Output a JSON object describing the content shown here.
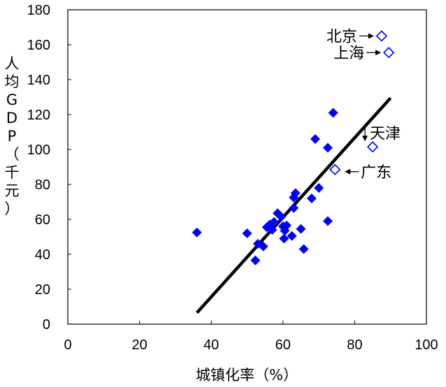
{
  "chart_data": {
    "type": "scatter",
    "title": "",
    "xlabel": "城镇化率（%）",
    "ylabel": "人均GDP（千元）",
    "xlim": [
      0,
      100
    ],
    "ylim": [
      0,
      180
    ],
    "x_ticks": [
      0,
      20,
      40,
      60,
      80,
      100
    ],
    "y_ticks": [
      0,
      20,
      40,
      60,
      80,
      100,
      120,
      140,
      160,
      180
    ],
    "x_tick_labels": [
      "0",
      "20",
      "40",
      "60",
      "80",
      "100"
    ],
    "y_tick_labels": [
      "0",
      "20",
      "40",
      "60",
      "80",
      "100",
      "120",
      "140",
      "160",
      "180"
    ],
    "grid": false,
    "colors": {
      "marker": "#0000ff",
      "trend": "#000000"
    },
    "series": [
      {
        "marker": "filled-diamond",
        "points": [
          {
            "x": 36.0,
            "y": 52.5
          },
          {
            "x": 50.0,
            "y": 52.0
          },
          {
            "x": 52.3,
            "y": 36.5
          },
          {
            "x": 53.0,
            "y": 46.0
          },
          {
            "x": 54.5,
            "y": 44.5
          },
          {
            "x": 55.5,
            "y": 55.5
          },
          {
            "x": 56.3,
            "y": 57.0
          },
          {
            "x": 57.0,
            "y": 54.0
          },
          {
            "x": 57.5,
            "y": 58.5
          },
          {
            "x": 58.5,
            "y": 63.5
          },
          {
            "x": 59.5,
            "y": 61.5
          },
          {
            "x": 60.0,
            "y": 56.0
          },
          {
            "x": 60.5,
            "y": 53.5
          },
          {
            "x": 60.3,
            "y": 49.0
          },
          {
            "x": 61.0,
            "y": 56.5
          },
          {
            "x": 62.5,
            "y": 50.5
          },
          {
            "x": 63.0,
            "y": 66.5
          },
          {
            "x": 63.0,
            "y": 72.5
          },
          {
            "x": 63.5,
            "y": 75.0
          },
          {
            "x": 65.0,
            "y": 54.5
          },
          {
            "x": 65.8,
            "y": 43.0
          },
          {
            "x": 68.0,
            "y": 72.0
          },
          {
            "x": 69.0,
            "y": 106.0
          },
          {
            "x": 70.0,
            "y": 78.0
          },
          {
            "x": 72.5,
            "y": 101.0
          },
          {
            "x": 72.5,
            "y": 59.0
          },
          {
            "x": 74.0,
            "y": 121.0
          }
        ]
      },
      {
        "marker": "open-diamond",
        "points": [
          {
            "x": 87.5,
            "y": 165.0
          },
          {
            "x": 89.5,
            "y": 155.5
          },
          {
            "x": 85.0,
            "y": 101.5
          },
          {
            "x": 74.5,
            "y": 88.5
          }
        ]
      }
    ],
    "trend_line": {
      "x1": 36.0,
      "y1": 6.5,
      "x2": 90.0,
      "y2": 129.5
    },
    "annotations": [
      {
        "text": "北京",
        "arrow": "→",
        "x": 87.5,
        "y": 165.0
      },
      {
        "text": "上海",
        "arrow": "→",
        "x": 89.5,
        "y": 155.5
      },
      {
        "text": "天津",
        "arrow": "↓",
        "x": 85.0,
        "y": 101.5
      },
      {
        "text": "广东",
        "arrow": "←",
        "x": 74.5,
        "y": 88.5
      }
    ]
  }
}
